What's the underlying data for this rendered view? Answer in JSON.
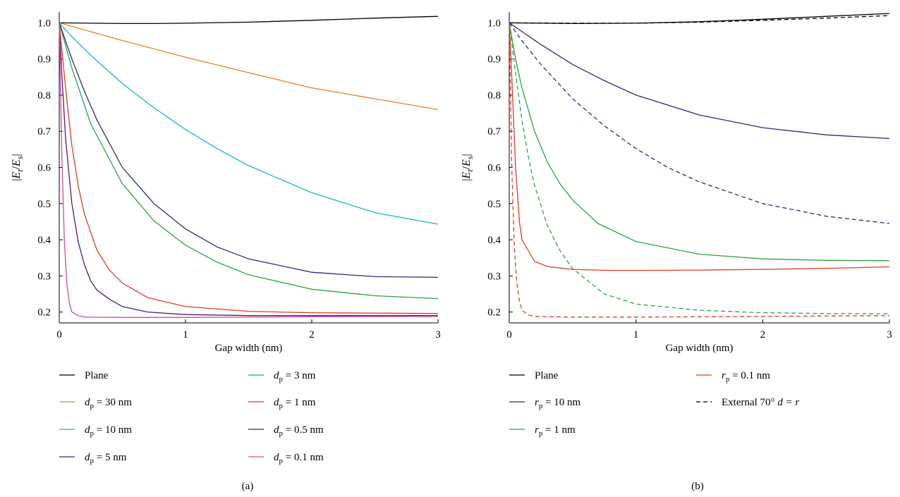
{
  "figure": {
    "panels": [
      {
        "label": "(a)",
        "ylabel_main": "|E",
        "ylabel_sub1": "t",
        "ylabel_mid": "/E",
        "ylabel_sub2": "s",
        "ylabel_end": "|",
        "xlabel": "Gap width (nm)"
      },
      {
        "label": "(b)",
        "ylabel_main": "|E",
        "ylabel_sub1": "t",
        "ylabel_mid": "/E",
        "ylabel_sub2": "s",
        "ylabel_end": "|",
        "xlabel": "Gap width (nm)"
      }
    ],
    "legend_a": [
      {
        "pre": "Plane",
        "sub": "",
        "post": ""
      },
      {
        "pre": "d",
        "sub": "p",
        "post": " = 30 nm"
      },
      {
        "pre": "d",
        "sub": "p",
        "post": " = 10 nm"
      },
      {
        "pre": "d",
        "sub": "p",
        "post": " = 5 nm"
      },
      {
        "pre": "d",
        "sub": "p",
        "post": " = 3 nm"
      },
      {
        "pre": "d",
        "sub": "p",
        "post": " = 1 nm"
      },
      {
        "pre": "d",
        "sub": "p",
        "post": " = 0.5 nm"
      },
      {
        "pre": "d",
        "sub": "p",
        "post": " = 0.1 nm"
      }
    ],
    "legend_b": [
      {
        "pre": "Plane",
        "sub": "",
        "post": ""
      },
      {
        "pre": "r",
        "sub": "p",
        "post": " = 10 nm"
      },
      {
        "pre": "r",
        "sub": "p",
        "post": " = 1 nm"
      },
      {
        "pre": "r",
        "sub": "p",
        "post": " = 0.1 nm"
      },
      {
        "pre": "External 70° ",
        "sub": "",
        "post": "",
        "italic_tail": "d = r"
      }
    ]
  },
  "chart_data": [
    {
      "type": "line",
      "panel": "(a)",
      "xlabel": "Gap width (nm)",
      "ylabel": "|Et/Es|",
      "xlim": [
        0,
        3
      ],
      "ylim": [
        0.17,
        1.03
      ],
      "xticks": [
        0,
        1,
        2,
        3
      ],
      "yticks": [
        0.2,
        0.3,
        0.4,
        0.5,
        0.6,
        0.7,
        0.8,
        0.9,
        1.0
      ],
      "ytick_labels": [
        "0.2",
        "0.3",
        "0.4",
        "0.5",
        "0.6",
        "0.7",
        "0.8",
        "0.9",
        "1.0"
      ],
      "series": [
        {
          "name": "Plane",
          "color": "#000000",
          "dash": "solid",
          "x": [
            0,
            0.25,
            0.5,
            0.75,
            1.0,
            1.5,
            2.0,
            2.5,
            3.0
          ],
          "y": [
            1.0,
            0.999,
            0.998,
            0.998,
            0.999,
            1.002,
            1.007,
            1.013,
            1.018
          ]
        },
        {
          "name": "d = 30 nm",
          "color": "#E8821E",
          "dash": "solid",
          "x": [
            0,
            0.5,
            1.0,
            1.5,
            2.0,
            2.5,
            3.0
          ],
          "y": [
            1.0,
            0.951,
            0.905,
            0.862,
            0.82,
            0.79,
            0.76
          ]
        },
        {
          "name": "d = 10 nm",
          "color": "#17B7C4",
          "dash": "solid",
          "x": [
            0,
            0.1,
            0.25,
            0.5,
            0.75,
            1.0,
            1.25,
            1.5,
            2.0,
            2.5,
            3.0
          ],
          "y": [
            1.0,
            0.962,
            0.91,
            0.832,
            0.765,
            0.705,
            0.652,
            0.605,
            0.53,
            0.475,
            0.443
          ]
        },
        {
          "name": "d = 5 nm",
          "color": "#4B1A7C",
          "dash": "solid",
          "x": [
            0,
            0.02,
            0.05,
            0.1,
            0.15,
            0.2,
            0.25,
            0.3,
            0.4,
            0.5,
            0.7,
            1.0,
            1.5,
            2.0,
            3.0
          ],
          "y": [
            1.0,
            0.86,
            0.68,
            0.5,
            0.395,
            0.33,
            0.285,
            0.26,
            0.235,
            0.215,
            0.2,
            0.193,
            0.19,
            0.19,
            0.19
          ]
        },
        {
          "name": "d = 3 nm",
          "color": "#2EA043",
          "dash": "solid",
          "x": [
            0,
            0.1,
            0.25,
            0.5,
            0.75,
            1.0,
            1.25,
            1.5,
            2.0,
            2.5,
            3.0
          ],
          "y": [
            1.0,
            0.875,
            0.72,
            0.555,
            0.452,
            0.385,
            0.338,
            0.303,
            0.263,
            0.245,
            0.237
          ]
        },
        {
          "name": "d = 1 nm",
          "color": "#E03A24",
          "dash": "solid",
          "x": [
            0,
            0.05,
            0.1,
            0.15,
            0.2,
            0.3,
            0.4,
            0.5,
            0.7,
            1.0,
            1.5,
            2.0,
            2.5,
            3.0
          ],
          "y": [
            1.0,
            0.82,
            0.66,
            0.55,
            0.47,
            0.37,
            0.315,
            0.28,
            0.24,
            0.215,
            0.202,
            0.198,
            0.197,
            0.196
          ]
        },
        {
          "name": "d = 0.5 nm",
          "color": "#2B2A7A",
          "dash": "solid",
          "x": [
            0,
            0.1,
            0.2,
            0.3,
            0.5,
            0.75,
            1.0,
            1.25,
            1.5,
            2.0,
            2.5,
            3.0
          ],
          "y": [
            1.0,
            0.9,
            0.81,
            0.73,
            0.6,
            0.5,
            0.43,
            0.38,
            0.347,
            0.31,
            0.298,
            0.296
          ]
        },
        {
          "name": "d = 0.1 nm",
          "color": "#D2489E",
          "dash": "solid",
          "x": [
            0,
            0.01,
            0.02,
            0.04,
            0.06,
            0.08,
            0.1,
            0.15,
            0.2,
            0.5,
            1.0,
            2.0,
            3.0
          ],
          "y": [
            1.0,
            0.82,
            0.64,
            0.4,
            0.28,
            0.225,
            0.2,
            0.19,
            0.186,
            0.185,
            0.185,
            0.187,
            0.188
          ]
        }
      ]
    },
    {
      "type": "line",
      "panel": "(b)",
      "xlabel": "Gap width (nm)",
      "ylabel": "|Et/Es|",
      "xlim": [
        0,
        3
      ],
      "ylim": [
        0.17,
        1.03
      ],
      "xticks": [
        0,
        1,
        2,
        3
      ],
      "yticks": [
        0.2,
        0.3,
        0.4,
        0.5,
        0.6,
        0.7,
        0.8,
        0.9,
        1.0
      ],
      "ytick_labels": [
        "0.2",
        "0.3",
        "0.4",
        "0.5",
        "0.6",
        "0.7",
        "0.8",
        "0.9",
        "1.0"
      ],
      "series": [
        {
          "name": "Plane",
          "color": "#000000",
          "dash": "solid",
          "x": [
            0,
            0.5,
            1.0,
            1.5,
            2.0,
            2.5,
            3.0
          ],
          "y": [
            1.0,
            0.998,
            0.999,
            1.003,
            1.01,
            1.018,
            1.026
          ]
        },
        {
          "name": "External 70° d = r (plane)",
          "color": "#000000",
          "dash": "dashed",
          "x": [
            0,
            0.5,
            1.0,
            1.5,
            2.0,
            2.5,
            3.0
          ],
          "y": [
            1.0,
            0.999,
            0.999,
            1.002,
            1.007,
            1.013,
            1.02
          ]
        },
        {
          "name": "r = 10 nm",
          "color": "#2B2A7A",
          "dash": "solid",
          "x": [
            0,
            0.25,
            0.5,
            0.75,
            1.0,
            1.5,
            2.0,
            2.5,
            3.0
          ],
          "y": [
            1.0,
            0.94,
            0.885,
            0.84,
            0.8,
            0.745,
            0.71,
            0.69,
            0.68
          ]
        },
        {
          "name": "External 70° d = r (r = 10 nm)",
          "color": "#2B2A7A",
          "dash": "dashed",
          "x": [
            0,
            0.1,
            0.25,
            0.5,
            0.75,
            1.0,
            1.25,
            1.5,
            2.0,
            2.5,
            3.0
          ],
          "y": [
            1.0,
            0.95,
            0.885,
            0.79,
            0.715,
            0.652,
            0.6,
            0.56,
            0.5,
            0.465,
            0.445
          ]
        },
        {
          "name": "r = 1 nm",
          "color": "#2EA043",
          "dash": "solid",
          "x": [
            0,
            0.05,
            0.1,
            0.2,
            0.3,
            0.4,
            0.5,
            0.7,
            1.0,
            1.5,
            2.0,
            2.5,
            3.0
          ],
          "y": [
            1.0,
            0.9,
            0.82,
            0.7,
            0.615,
            0.555,
            0.51,
            0.445,
            0.395,
            0.36,
            0.347,
            0.343,
            0.342
          ]
        },
        {
          "name": "External 70° d = r (r = 1 nm)",
          "color": "#2EA043",
          "dash": "dashed",
          "x": [
            0,
            0.05,
            0.1,
            0.15,
            0.2,
            0.3,
            0.4,
            0.5,
            0.75,
            1.0,
            1.5,
            2.0,
            2.5,
            3.0
          ],
          "y": [
            1.0,
            0.86,
            0.73,
            0.63,
            0.55,
            0.44,
            0.37,
            0.32,
            0.25,
            0.222,
            0.205,
            0.198,
            0.196,
            0.195
          ]
        },
        {
          "name": "r = 0.1 nm",
          "color": "#E03A24",
          "dash": "solid",
          "x": [
            0,
            0.02,
            0.05,
            0.08,
            0.1,
            0.2,
            0.3,
            0.5,
            0.8,
            1.0,
            1.5,
            2.0,
            2.5,
            3.0
          ],
          "y": [
            1.0,
            0.85,
            0.6,
            0.45,
            0.4,
            0.34,
            0.326,
            0.318,
            0.315,
            0.315,
            0.316,
            0.318,
            0.321,
            0.325
          ]
        },
        {
          "name": "External 70° d = r (r = 0.1 nm)",
          "color": "#E03A24",
          "dash": "dashed",
          "x": [
            0,
            0.01,
            0.02,
            0.04,
            0.06,
            0.08,
            0.1,
            0.15,
            0.2,
            0.5,
            1.0,
            2.0,
            3.0
          ],
          "y": [
            1.0,
            0.8,
            0.6,
            0.38,
            0.28,
            0.23,
            0.205,
            0.192,
            0.188,
            0.186,
            0.186,
            0.188,
            0.19
          ]
        }
      ]
    }
  ]
}
